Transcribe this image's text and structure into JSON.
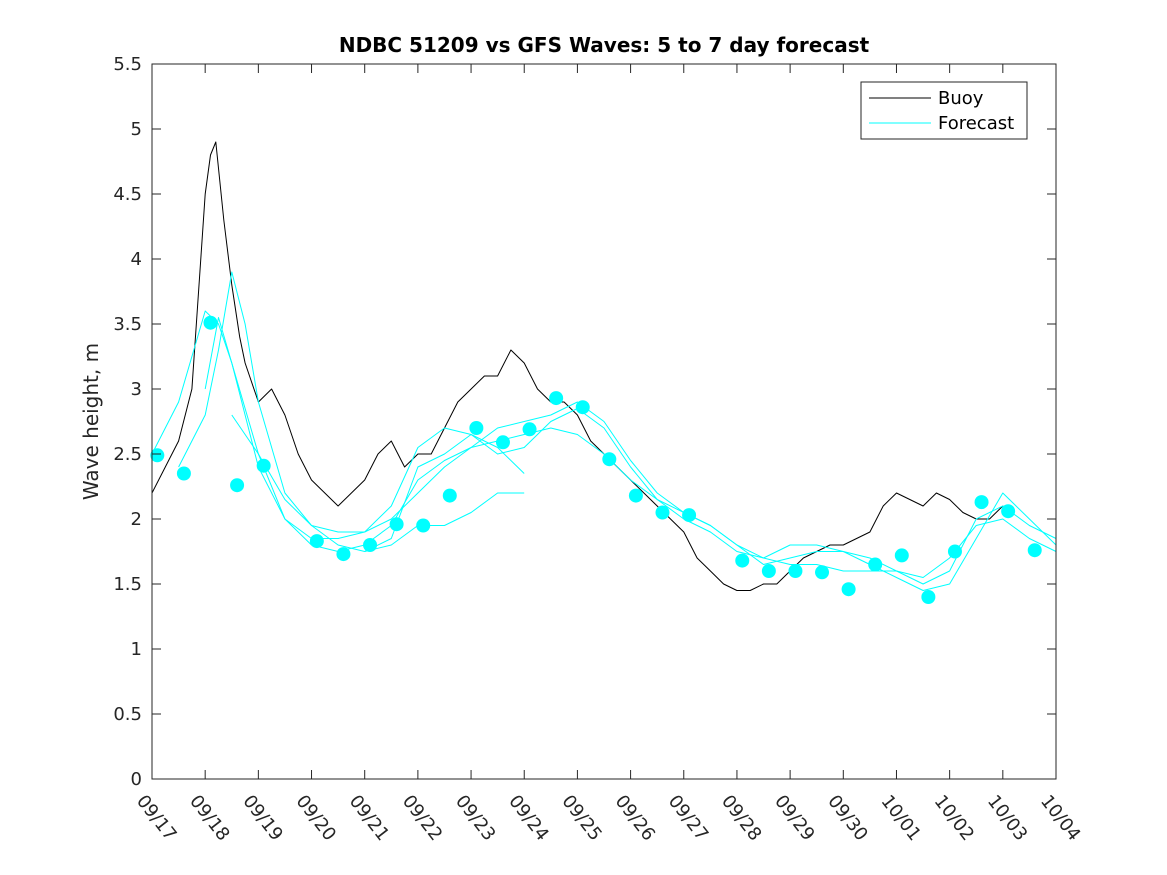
{
  "chart_data": {
    "type": "line",
    "title": "NDBC 51209 vs GFS Waves: 5 to 7 day forecast",
    "xlabel": "",
    "ylabel": "Wave height, m",
    "xlim": [
      0,
      17
    ],
    "ylim": [
      0,
      5.5
    ],
    "yticks": [
      0,
      0.5,
      1,
      1.5,
      2,
      2.5,
      3,
      3.5,
      4,
      4.5,
      5,
      5.5
    ],
    "ytick_labels": [
      "0",
      "0.5",
      "1",
      "1.5",
      "2",
      "2.5",
      "3",
      "3.5",
      "4",
      "4.5",
      "5",
      "5.5"
    ],
    "xticks": [
      0,
      1,
      2,
      3,
      4,
      5,
      6,
      7,
      8,
      9,
      10,
      11,
      12,
      13,
      14,
      15,
      16,
      17
    ],
    "xtick_labels": [
      "09/17",
      "09/18",
      "09/19",
      "09/20",
      "09/21",
      "09/22",
      "09/23",
      "09/24",
      "09/25",
      "09/26",
      "09/27",
      "09/28",
      "09/29",
      "09/30",
      "10/01",
      "10/02",
      "10/03",
      "10/04"
    ],
    "grid": false,
    "legend": {
      "position": "top-right",
      "entries": [
        "Buoy",
        "Forecast"
      ]
    },
    "colors": {
      "buoy": "#000000",
      "forecast": "#00ffff"
    },
    "series": [
      {
        "name": "Buoy",
        "x": [
          0,
          0.25,
          0.5,
          0.75,
          0.9,
          1.0,
          1.1,
          1.2,
          1.35,
          1.5,
          1.65,
          1.75,
          2.0,
          2.25,
          2.5,
          2.75,
          3.0,
          3.25,
          3.5,
          3.75,
          4.0,
          4.25,
          4.5,
          4.75,
          5.0,
          5.25,
          5.5,
          5.75,
          6.0,
          6.25,
          6.5,
          6.75,
          7.0,
          7.25,
          7.5,
          7.75,
          8.0,
          8.25,
          8.5,
          8.75,
          9.0,
          9.25,
          9.5,
          9.75,
          10.0,
          10.25,
          10.5,
          10.75,
          11.0,
          11.25,
          11.5,
          11.75,
          12.0,
          12.25,
          12.5,
          12.75,
          13.0,
          13.25,
          13.5,
          13.75,
          14.0,
          14.25,
          14.5,
          14.75,
          15.0,
          15.25,
          15.5,
          15.75,
          16.0,
          16.1
        ],
        "values": [
          2.2,
          2.4,
          2.6,
          3.0,
          3.9,
          4.5,
          4.8,
          4.9,
          4.3,
          3.8,
          3.4,
          3.2,
          2.9,
          3.0,
          2.8,
          2.5,
          2.3,
          2.2,
          2.1,
          2.2,
          2.3,
          2.5,
          2.6,
          2.4,
          2.5,
          2.5,
          2.7,
          2.9,
          3.0,
          3.1,
          3.1,
          3.3,
          3.2,
          3.0,
          2.9,
          2.9,
          2.8,
          2.6,
          2.5,
          2.4,
          2.3,
          2.2,
          2.1,
          2.0,
          1.9,
          1.7,
          1.6,
          1.5,
          1.45,
          1.45,
          1.5,
          1.5,
          1.6,
          1.7,
          1.75,
          1.8,
          1.8,
          1.85,
          1.9,
          2.1,
          2.2,
          2.15,
          2.1,
          2.2,
          2.15,
          2.05,
          2.0,
          2.0,
          2.1,
          2.05
        ]
      },
      {
        "name": "Forecast",
        "x": [
          0,
          0.5,
          1.0,
          1.25,
          1.5,
          2.0,
          2.5,
          3.0,
          3.5,
          4.0,
          4.5,
          5.0,
          5.5,
          6.0,
          6.5,
          7.0,
          7.5,
          8.0,
          8.5,
          9.0,
          9.5,
          10.0,
          10.5,
          11.0,
          11.5,
          12.0,
          12.5,
          13.0,
          13.5,
          14.0,
          14.5,
          15.0,
          15.5,
          16.0,
          16.5,
          17.0
        ],
        "values": [
          2.5,
          2.9,
          3.6,
          3.5,
          3.2,
          2.4,
          2.0,
          1.85,
          1.85,
          1.9,
          2.0,
          2.2,
          2.4,
          2.55,
          2.6,
          2.65,
          2.7,
          2.65,
          2.5,
          2.3,
          2.15,
          2.05,
          1.95,
          1.8,
          1.7,
          1.65,
          1.65,
          1.6,
          1.6,
          1.6,
          1.55,
          1.7,
          1.95,
          2.0,
          1.85,
          1.75
        ]
      },
      {
        "name": "Forecast",
        "x": [
          0.5,
          1.0,
          1.25,
          1.5,
          1.75,
          2.0,
          2.5,
          3.0,
          3.5,
          4.0,
          4.5,
          5.0,
          5.5,
          6.0,
          6.5,
          7.0,
          7.5,
          8.0,
          8.5,
          9.0,
          9.5,
          10.0,
          10.5,
          11.0,
          11.5,
          12.0,
          12.5,
          13.0,
          13.5,
          14.0,
          14.5,
          15.0,
          15.5,
          16.0,
          16.5,
          17.0
        ],
        "values": [
          2.4,
          2.8,
          3.3,
          3.9,
          3.5,
          2.9,
          2.2,
          1.95,
          1.9,
          1.9,
          2.1,
          2.55,
          2.7,
          2.65,
          2.5,
          2.55,
          2.75,
          2.85,
          2.7,
          2.4,
          2.15,
          2.0,
          1.9,
          1.75,
          1.7,
          1.8,
          1.8,
          1.75,
          1.7,
          1.6,
          1.5,
          1.6,
          2.0,
          2.1,
          1.95,
          1.85
        ]
      },
      {
        "name": "Forecast",
        "x": [
          1.0,
          1.25,
          1.5,
          2.0,
          2.5,
          3.0,
          3.5,
          4.0,
          4.5,
          5.0,
          5.5,
          6.0,
          6.5,
          7.0,
          7.5,
          8.0,
          8.5,
          9.0,
          9.5,
          10.0,
          10.5,
          11.0,
          11.5,
          12.0,
          12.5,
          13.0,
          13.5,
          14.0,
          14.5,
          15.0,
          15.5,
          16.0,
          16.5,
          17.0
        ],
        "values": [
          3.0,
          3.55,
          3.2,
          2.5,
          2.0,
          1.8,
          1.75,
          1.8,
          1.95,
          2.3,
          2.45,
          2.55,
          2.7,
          2.75,
          2.8,
          2.9,
          2.75,
          2.45,
          2.2,
          2.05,
          1.95,
          1.8,
          1.65,
          1.7,
          1.75,
          1.75,
          1.65,
          1.55,
          1.45,
          1.5,
          1.85,
          2.2,
          2.0,
          1.8
        ]
      },
      {
        "name": "Forecast",
        "x": [
          1.5,
          2.0,
          2.5,
          3.0,
          3.5,
          4.0,
          4.5,
          5.0,
          5.5,
          6.0,
          6.5,
          7.0
        ],
        "values": [
          2.8,
          2.5,
          2.15,
          1.95,
          1.8,
          1.75,
          1.85,
          2.4,
          2.5,
          2.65,
          2.55,
          2.35
        ]
      },
      {
        "name": "Forecast",
        "x": [
          4.0,
          4.5,
          5.0,
          5.5,
          6.0,
          6.5,
          7.0
        ],
        "values": [
          1.75,
          1.8,
          1.95,
          1.95,
          2.05,
          2.2,
          2.2
        ]
      }
    ],
    "markers": {
      "name": "Forecast points",
      "x": [
        0.1,
        0.6,
        1.1,
        1.6,
        2.1,
        3.1,
        3.6,
        4.1,
        4.6,
        5.1,
        5.6,
        6.1,
        6.6,
        7.1,
        7.6,
        8.1,
        8.6,
        9.1,
        9.6,
        10.1,
        11.1,
        11.6,
        12.1,
        12.6,
        13.1,
        13.6,
        14.1,
        14.6,
        15.1,
        15.6,
        16.1,
        16.6
      ],
      "values": [
        2.49,
        2.35,
        3.51,
        2.26,
        2.41,
        1.83,
        1.73,
        1.8,
        1.96,
        1.95,
        2.18,
        2.7,
        2.59,
        2.69,
        2.93,
        2.86,
        2.46,
        2.18,
        2.05,
        2.03,
        1.68,
        1.6,
        1.6,
        1.59,
        1.46,
        1.65,
        1.72,
        1.4,
        1.75,
        2.13,
        2.06,
        1.76
      ]
    }
  }
}
